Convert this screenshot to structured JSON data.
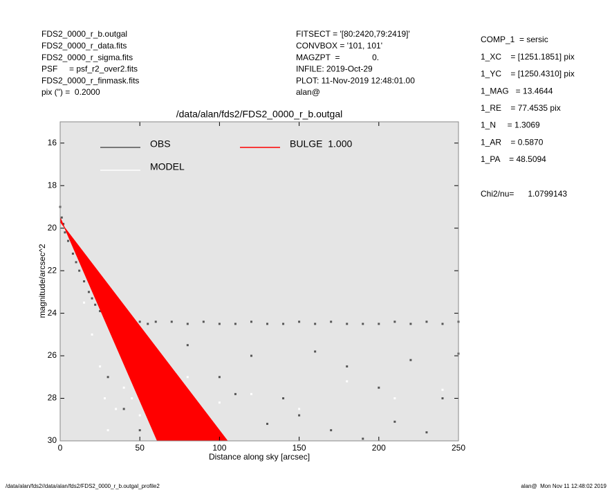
{
  "chart_data": {
    "type": "scatter",
    "title": "/data/alan/fds2/FDS2_0000_r_b.outgal",
    "xlabel": "Distance along sky [arcsec]",
    "ylabel": "magnitude/arcsec^2",
    "header_left": [
      "FDS2_0000_r_b.outgal",
      "FDS2_0000_r_data.fits",
      "FDS2_0000_r_sigma.fits",
      "PSF     = psf_r2_over2.fits",
      "FDS2_0000_r_finmask.fits",
      "pix (\") =  0.2000"
    ],
    "header_middle": [
      "FITSECT = '[80:2420,79:2419]'",
      "CONVBOX = '101, 101'",
      "MAGZPT  =              0.",
      "INFILE: 2019-Oct-29",
      "PLOT: 11-Nov-2019 12:48:01.00",
      "alan@"
    ],
    "header_right": [
      "COMP_1  = sersic",
      "1_XC    = [1251.1851] pix",
      "1_YC    = [1250.4310] pix",
      "1_MAG   = 13.4644",
      "1_RE    = 77.4535 pix",
      "1_N     = 1.3069",
      "1_AR    = 0.5870",
      "1_PA    = 48.5094"
    ],
    "chi2": "Chi2/nu=      1.0799143",
    "footer_left": "/data/alan/fds2//data/alan/fds2/FDS2_0000_r_b.outgal_profile2",
    "footer_right": "alan@  Mon Nov 11 12:48:02 2019",
    "xlim": [
      0,
      250
    ],
    "ylim": [
      30,
      15
    ],
    "xticks": [
      0,
      50,
      100,
      150,
      200,
      250
    ],
    "yticks": [
      16,
      18,
      20,
      22,
      24,
      26,
      28,
      30
    ],
    "grid": false,
    "series": [
      {
        "name": "OBS",
        "color": "#555555",
        "style": "points",
        "x": [
          0,
          1,
          2,
          3,
          5,
          8,
          10,
          12,
          15,
          18,
          20,
          22,
          25,
          28,
          30,
          35,
          40,
          45,
          50,
          55,
          60,
          70,
          80,
          90,
          100,
          110,
          120,
          130,
          140,
          150,
          160,
          170,
          180,
          190,
          200,
          210,
          220,
          230,
          240,
          250,
          30,
          40,
          60,
          80,
          100,
          120,
          140,
          160,
          180,
          200,
          220,
          240,
          50,
          70,
          90,
          110,
          130,
          150,
          170,
          190,
          210,
          230,
          250
        ],
        "values": [
          19,
          19.5,
          19.8,
          20.2,
          20.6,
          21.2,
          21.6,
          22,
          22.5,
          23,
          23.3,
          23.6,
          23.9,
          24.1,
          24.2,
          24.3,
          24.4,
          24.3,
          24.4,
          24.5,
          24.4,
          24.4,
          24.5,
          24.4,
          24.5,
          24.5,
          24.4,
          24.5,
          24.5,
          24.4,
          24.5,
          24.4,
          24.5,
          24.5,
          24.5,
          24.4,
          24.5,
          24.4,
          24.5,
          24.4,
          27,
          28.5,
          26,
          25.5,
          27,
          26,
          28,
          25.8,
          26.5,
          27.5,
          26.2,
          28,
          29.5,
          29,
          29.8,
          27.8,
          29.2,
          28.8,
          29.5,
          29.9,
          29.1,
          29.6,
          25.9
        ]
      },
      {
        "name": "MODEL",
        "color": "#ffffff",
        "style": "points",
        "x": [
          15,
          20,
          25,
          28,
          30,
          35,
          40,
          45,
          50,
          60,
          80,
          100,
          120,
          150,
          180,
          210,
          240
        ],
        "values": [
          23.5,
          25,
          26.5,
          28,
          29.5,
          28.5,
          27.5,
          28,
          28.8,
          27.5,
          27,
          28.2,
          27.8,
          28.5,
          27.2,
          28,
          27.6
        ]
      },
      {
        "name": "BULGE  1.000",
        "color": "#ff0000",
        "style": "polygon",
        "x": [
          0,
          61,
          105,
          0
        ],
        "values": [
          19.5,
          30,
          30,
          19.7
        ]
      }
    ]
  }
}
